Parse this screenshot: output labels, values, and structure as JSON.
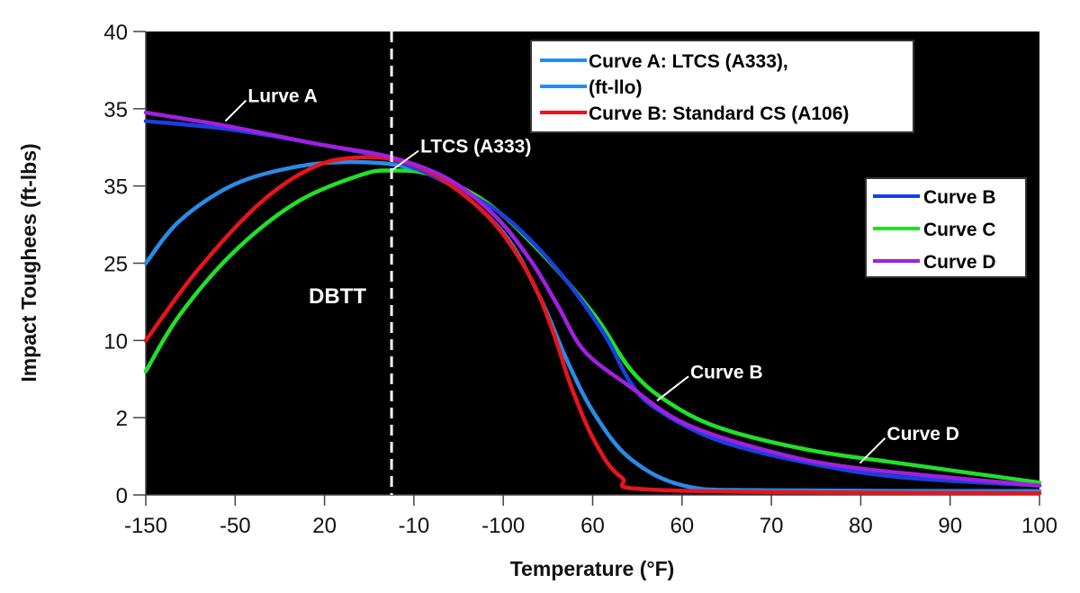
{
  "chart_data": {
    "type": "line",
    "title": "",
    "xlabel": "Temperature (°F)",
    "ylabel": "Impact Toughees (ft-lbs)",
    "x_note": "x and y values are given as positions along the printed tick sequence (tick 0 = first printed label), since the printed tick labels are not monotonic",
    "xtick_labels": [
      "-150",
      "-50",
      "20",
      "-10",
      "-100",
      "60",
      "60",
      "70",
      "80",
      "90",
      "100"
    ],
    "ytick_labels": [
      "0",
      "2",
      "10",
      "25",
      "35",
      "35",
      "40"
    ],
    "xlim": [
      0,
      10
    ],
    "ylim": [
      0,
      6
    ],
    "grid": false,
    "background": "#000000",
    "dbtt_line": {
      "x": 2.75,
      "label": "DBTT"
    },
    "series": [
      {
        "name": "Curve A: LTCS (A333),",
        "color": "#2a8be8",
        "x": [
          0,
          0.38,
          0.99,
          1.69,
          2.3,
          2.9,
          3.4,
          4.01,
          4.41,
          4.71,
          5.02,
          5.42,
          6.02,
          6.93,
          10
        ],
        "y": [
          3.0,
          3.55,
          4.02,
          4.25,
          4.31,
          4.25,
          4.02,
          3.38,
          2.56,
          1.75,
          1.05,
          0.47,
          0.12,
          0.06,
          0.05
        ]
      },
      {
        "name": "Curve B: Standard CS (A106)",
        "color": "#e8141c",
        "x": [
          0,
          0.58,
          1.29,
          1.89,
          2.4,
          2.9,
          3.4,
          3.91,
          4.31,
          4.56,
          4.76,
          5.02,
          5.32,
          5.82,
          10
        ],
        "y": [
          2.0,
          2.91,
          3.79,
          4.25,
          4.37,
          4.31,
          4.02,
          3.5,
          2.8,
          2.1,
          1.4,
          0.7,
          0.23,
          0.06,
          0.02
        ]
      },
      {
        "name": "Curve B",
        "color": "#1a3fe0",
        "x": [
          0,
          0.89,
          1.89,
          2.75,
          3.4,
          4.01,
          4.61,
          5.12,
          5.42,
          5.72,
          6.42,
          7.43,
          8.44,
          10
        ],
        "y": [
          4.84,
          4.74,
          4.55,
          4.34,
          4.02,
          3.61,
          2.91,
          2.1,
          1.46,
          1.11,
          0.7,
          0.41,
          0.23,
          0.12
        ]
      },
      {
        "name": "Curve C",
        "color": "#22e02a",
        "x": [
          0,
          0.38,
          0.99,
          1.69,
          2.4,
          2.75,
          3.2,
          3.81,
          4.41,
          5.02,
          5.42,
          5.82,
          6.42,
          7.43,
          8.44,
          10
        ],
        "y": [
          1.6,
          2.33,
          3.15,
          3.79,
          4.14,
          4.2,
          4.14,
          3.79,
          3.15,
          2.33,
          1.63,
          1.22,
          0.87,
          0.58,
          0.41,
          0.16
        ]
      },
      {
        "name": "Curve D",
        "color": "#a020e0",
        "x": [
          0,
          0.89,
          1.89,
          2.75,
          3.4,
          3.91,
          4.31,
          4.61,
          4.91,
          5.42,
          6.02,
          6.93,
          7.94,
          10
        ],
        "y": [
          4.95,
          4.78,
          4.55,
          4.37,
          4.08,
          3.61,
          3.03,
          2.45,
          1.86,
          1.4,
          0.93,
          0.58,
          0.35,
          0.12
        ]
      }
    ],
    "legend_top": {
      "placement": "top-right",
      "entries": [
        {
          "label": "Curve A: LTCS (A333),",
          "color": "#2a8be8"
        },
        {
          "label": "(ft-llo)",
          "color": "#2a8be8"
        },
        {
          "label": "Curve B: Standard CS (A106)",
          "color": "#e8141c"
        }
      ]
    },
    "legend_right": {
      "placement": "right",
      "entries": [
        {
          "label": "Curve B",
          "color": "#1a3fe0"
        },
        {
          "label": "Curve C",
          "color": "#22e02a"
        },
        {
          "label": "Curve D",
          "color": "#a020e0"
        }
      ]
    },
    "annotations": [
      {
        "text": "Lurve A",
        "x": 0.89,
        "y": 4.84
      },
      {
        "text": "LTCS (A333)",
        "x": 2.75,
        "y": 4.2
      },
      {
        "text": "Curve B",
        "x": 5.72,
        "y": 1.22
      },
      {
        "text": "Curve D",
        "x": 7.99,
        "y": 0.41
      }
    ]
  }
}
